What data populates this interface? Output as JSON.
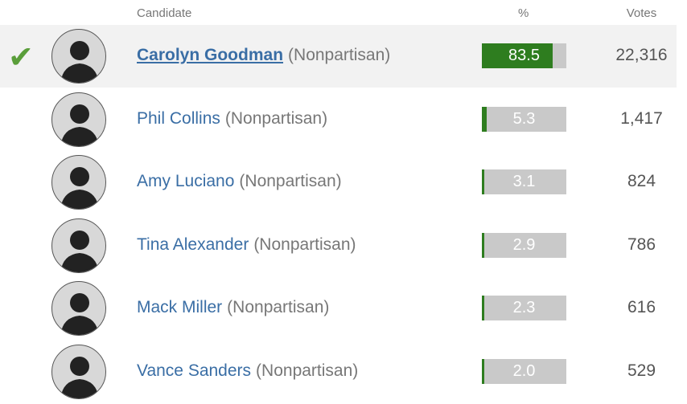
{
  "header": {
    "candidate": "Candidate",
    "percent": "%",
    "votes": "Votes"
  },
  "rows": [
    {
      "winner": true,
      "name": "Carolyn Goodman",
      "party": "(Nonpartisan)",
      "pct": 83.5,
      "votes": "22,316"
    },
    {
      "winner": false,
      "name": "Phil Collins",
      "party": "(Nonpartisan)",
      "pct": 5.3,
      "votes": "1,417"
    },
    {
      "winner": false,
      "name": "Amy Luciano",
      "party": "(Nonpartisan)",
      "pct": 3.1,
      "votes": "824"
    },
    {
      "winner": false,
      "name": "Tina Alexander",
      "party": "(Nonpartisan)",
      "pct": 2.9,
      "votes": "786"
    },
    {
      "winner": false,
      "name": "Mack Miller",
      "party": "(Nonpartisan)",
      "pct": 2.3,
      "votes": "616"
    },
    {
      "winner": false,
      "name": "Vance Sanders",
      "party": "(Nonpartisan)",
      "pct": {
        "value": 2,
        "label": "2.0"
      },
      "votes": "529"
    }
  ]
}
